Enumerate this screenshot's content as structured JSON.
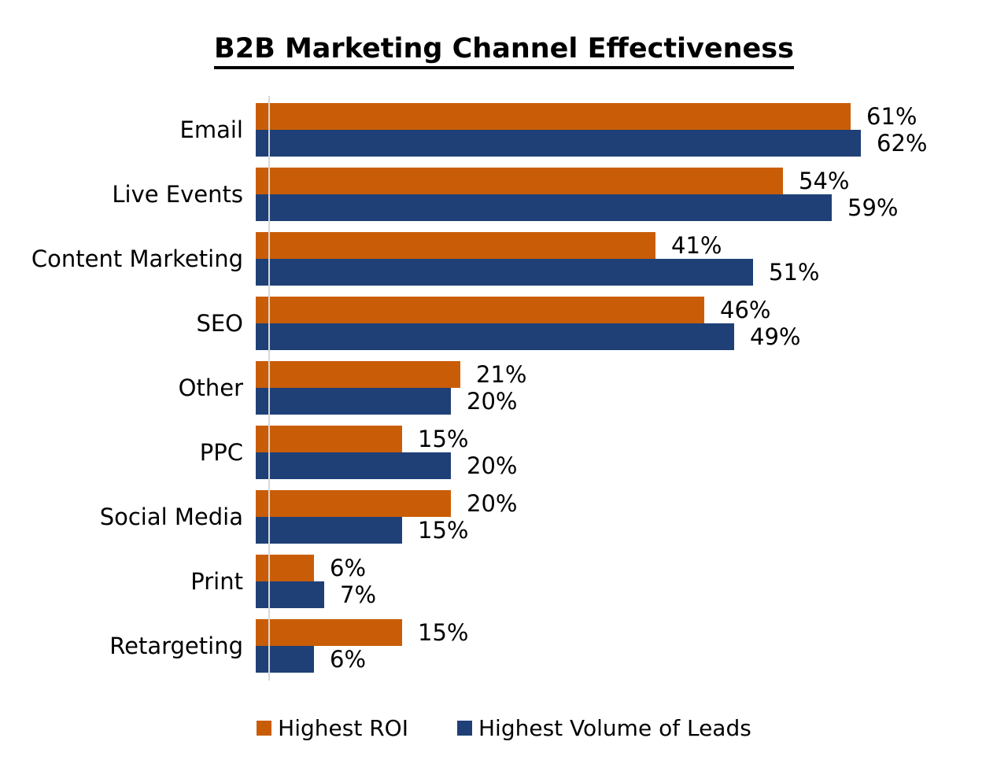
{
  "chart_data": {
    "type": "bar",
    "orientation": "horizontal",
    "title": "B2B Marketing Channel Effectiveness",
    "categories": [
      "Email",
      "Live Events",
      "Content Marketing",
      "SEO",
      "Other",
      "PPC",
      "Social Media",
      "Print",
      "Retargeting"
    ],
    "series": [
      {
        "name": "Highest ROI",
        "color": "#C95D07",
        "values": [
          61,
          54,
          41,
          46,
          21,
          15,
          20,
          6,
          15
        ]
      },
      {
        "name": "Highest Volume of Leads",
        "color": "#1F4077",
        "values": [
          62,
          59,
          51,
          49,
          20,
          20,
          15,
          7,
          6
        ]
      }
    ],
    "value_suffix": "%",
    "xlim": [
      0,
      75
    ],
    "grid": false,
    "legend_position": "bottom",
    "axis_line_color": "#D9D9D9",
    "text_color": "#000000"
  }
}
